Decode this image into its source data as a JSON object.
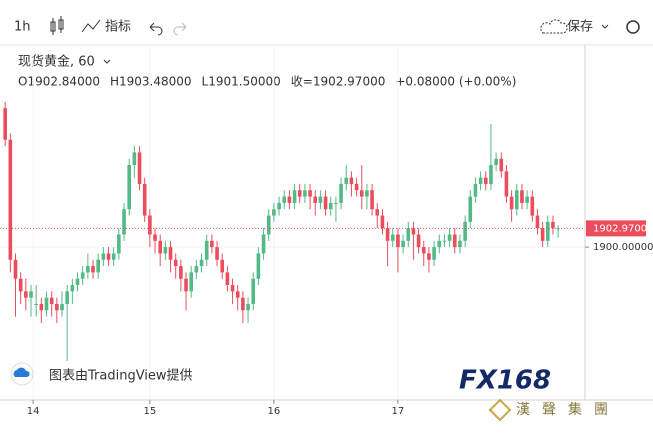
{
  "toolbar": {
    "interval": "1h",
    "indicators": "指标",
    "save": "保存"
  },
  "chart_data": {
    "type": "candlestick",
    "title": "现货黄金, 60",
    "ohlc_text": [
      "O1902.84000",
      "H1903.48000",
      "L1901.50000",
      "收=1902.97000",
      "+0.08000 (+0.00%)"
    ],
    "open": [
      1922,
      1917,
      1898,
      1895,
      1893,
      1892,
      1891,
      1891,
      1890,
      1892,
      1891,
      1890,
      1891,
      1893,
      1894,
      1895,
      1896,
      1897,
      1896,
      1898,
      1899,
      1898,
      1899,
      1902,
      1906,
      1913,
      1915,
      1910,
      1905,
      1902,
      1901,
      1899,
      1900,
      1898,
      1897,
      1895,
      1893,
      1896,
      1897,
      1898,
      1901,
      1900,
      1898,
      1896,
      1894,
      1893,
      1892,
      1890,
      1891,
      1895,
      1899,
      1902,
      1905,
      1906,
      1907,
      1908,
      1907,
      1909,
      1908,
      1909,
      1908,
      1907,
      1908,
      1906,
      1907,
      1907,
      1910,
      1911,
      1910,
      1909,
      1908,
      1909,
      1906,
      1905,
      1903,
      1901,
      1902,
      1900,
      1901,
      1903,
      1902,
      1900,
      1899,
      1898,
      1900,
      1901,
      1901,
      1902,
      1900,
      1901,
      1904,
      1908,
      1910,
      1911,
      1910,
      1913,
      1914,
      1912,
      1908,
      1906,
      1909,
      1907,
      1908,
      1905,
      1903,
      1901,
      1904,
      1902.84
    ],
    "high": [
      1923,
      1918,
      1899,
      1896,
      1895,
      1894,
      1894,
      1892,
      1893,
      1893,
      1892,
      1893,
      1894,
      1895,
      1896,
      1897,
      1899,
      1898,
      1899,
      1900,
      1900,
      1900,
      1903,
      1907,
      1914,
      1916,
      1916,
      1911,
      1906,
      1903,
      1902,
      1901,
      1901,
      1899,
      1898,
      1896,
      1897,
      1898,
      1899,
      1902,
      1902,
      1901,
      1899,
      1897,
      1895,
      1894,
      1893,
      1892,
      1896,
      1900,
      1903,
      1906,
      1907,
      1908,
      1909,
      1909,
      1910,
      1910,
      1910,
      1910,
      1909,
      1909,
      1909,
      1908,
      1908,
      1911,
      1913,
      1912,
      1911,
      1913,
      1910,
      1910,
      1907,
      1906,
      1904,
      1903,
      1903,
      1902,
      1904,
      1904,
      1903,
      1901,
      1900,
      1901,
      1902,
      1902,
      1903,
      1903,
      1902,
      1905,
      1909,
      1911,
      1912,
      1912,
      1919.5,
      1915,
      1915,
      1913,
      1909,
      1910,
      1910,
      1909,
      1909,
      1906,
      1904,
      1905,
      1905,
      1903.48
    ],
    "low": [
      1916,
      1896,
      1889,
      1891,
      1890,
      1889,
      1889,
      1888,
      1889,
      1889,
      1888,
      1889,
      1882,
      1891,
      1893,
      1894,
      1895,
      1895,
      1895,
      1897,
      1897,
      1897,
      1898,
      1901,
      1905,
      1911,
      1909,
      1904,
      1900,
      1899,
      1897,
      1898,
      1896,
      1895,
      1893,
      1890,
      1892,
      1895,
      1896,
      1897,
      1899,
      1897,
      1895,
      1893,
      1891,
      1890,
      1888,
      1888,
      1890,
      1894,
      1898,
      1901,
      1904,
      1905,
      1906,
      1906,
      1906,
      1907,
      1907,
      1906,
      1905,
      1906,
      1905,
      1905,
      1904,
      1906,
      1909,
      1908,
      1908,
      1906,
      1906,
      1905,
      1903,
      1902,
      1897,
      1900,
      1896,
      1899,
      1900,
      1898,
      1899,
      1897,
      1896,
      1897,
      1899,
      1900,
      1900,
      1899,
      1899,
      1900,
      1903,
      1907,
      1909,
      1909,
      1909,
      1912,
      1911,
      1907,
      1904,
      1905,
      1906,
      1906,
      1904,
      1902,
      1900,
      1900,
      1902,
      1901.5
    ],
    "close": [
      1917,
      1898,
      1895,
      1893,
      1892,
      1893,
      1891,
      1890,
      1892,
      1891,
      1890,
      1891,
      1893,
      1894,
      1895,
      1896,
      1897,
      1896,
      1898,
      1899,
      1898,
      1899,
      1902,
      1906,
      1913,
      1915,
      1910,
      1905,
      1902,
      1901,
      1899,
      1900,
      1898,
      1897,
      1895,
      1893,
      1896,
      1897,
      1898,
      1901,
      1900,
      1898,
      1896,
      1894,
      1893,
      1892,
      1890,
      1891,
      1895,
      1899,
      1902,
      1905,
      1906,
      1907,
      1908,
      1907,
      1909,
      1908,
      1909,
      1908,
      1907,
      1908,
      1906,
      1907,
      1907,
      1910,
      1911,
      1910,
      1909,
      1908,
      1909,
      1906,
      1905,
      1903,
      1901,
      1902,
      1900,
      1901,
      1903,
      1902,
      1900,
      1899,
      1898,
      1900,
      1901,
      1901,
      1902,
      1900,
      1901,
      1904,
      1908,
      1910,
      1911,
      1910,
      1913,
      1914,
      1912,
      1908,
      1906,
      1909,
      1907,
      1908,
      1905,
      1903,
      1901,
      1904,
      1903,
      1902.97
    ],
    "up_color": "#53b987",
    "down_color": "#eb4d5c",
    "ylim": [
      1875.8,
      1932
    ],
    "yticks": [
      {
        "value": 1900,
        "label": "1900.00000"
      }
    ],
    "last_price": {
      "value": 1902.97,
      "label": "1902.97000"
    },
    "xlim": [
      -1,
      112.2
    ],
    "xticks": [
      {
        "value": 5.4,
        "label": "14"
      },
      {
        "value": 28,
        "label": "15"
      },
      {
        "value": 52,
        "label": "16"
      },
      {
        "value": 76,
        "label": "17"
      }
    ]
  },
  "attribution": "图表由TradingView提供",
  "watermark": "FX168",
  "brand": "漢聲集團"
}
